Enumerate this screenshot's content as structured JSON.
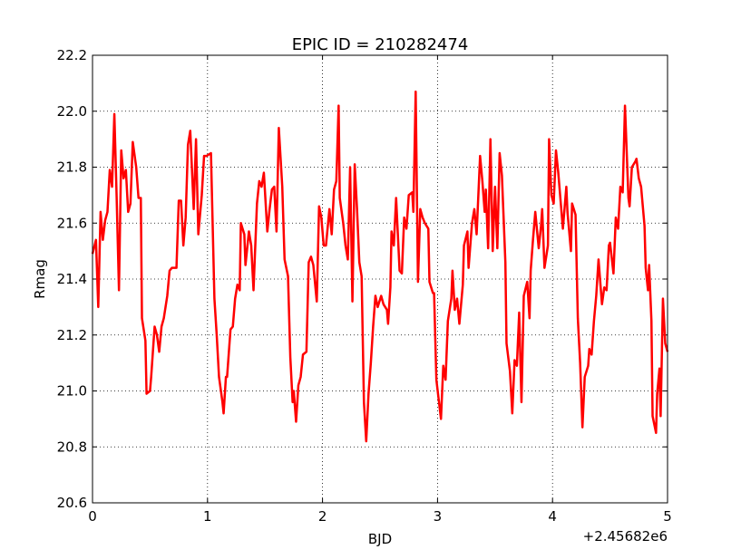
{
  "chart_data": {
    "type": "line",
    "title": "EPIC ID = 210282474",
    "x_label": "BJD",
    "y_label": "Rmag",
    "x_offset_label": "+2.45682e6",
    "xlim": [
      0,
      5
    ],
    "xticks": [
      0,
      1,
      2,
      3,
      4,
      5
    ],
    "ylim": [
      20.6,
      22.2
    ],
    "yticks": [
      20.6,
      20.8,
      {
        "value": 21,
        "label": "21.0"
      },
      21.2,
      21.4,
      21.6,
      21.8,
      {
        "value": 22,
        "label": "22.0"
      },
      22.2
    ],
    "grid": true,
    "series": [
      {
        "color": "#ff0000",
        "x": [
          0,
          0.03,
          0.05,
          0.07,
          0.09,
          0.11,
          0.13,
          0.15,
          0.17,
          0.19,
          0.21,
          0.23,
          0.25,
          0.27,
          0.29,
          0.31,
          0.33,
          0.35,
          0.38,
          0.4,
          0.42,
          0.43,
          0.46,
          0.47,
          0.5,
          0.51,
          0.54,
          0.56,
          0.58,
          0.6,
          0.62,
          0.65,
          0.67,
          0.69,
          0.73,
          0.75,
          0.77,
          0.79,
          0.81,
          0.83,
          0.85,
          0.88,
          0.9,
          0.92,
          0.95,
          0.97,
          0.99,
          1.03,
          1.06,
          1.08,
          1.1,
          1.13,
          1.14,
          1.16,
          1.17,
          1.2,
          1.22,
          1.24,
          1.26,
          1.28,
          1.29,
          1.32,
          1.33,
          1.36,
          1.38,
          1.4,
          1.43,
          1.45,
          1.47,
          1.49,
          1.52,
          1.54,
          1.56,
          1.58,
          1.6,
          1.62,
          1.65,
          1.67,
          1.7,
          1.72,
          1.74,
          1.75,
          1.77,
          1.79,
          1.81,
          1.83,
          1.86,
          1.88,
          1.9,
          1.92,
          1.95,
          1.97,
          1.99,
          2.01,
          2.03,
          2.06,
          2.08,
          2.1,
          2.12,
          2.14,
          2.15,
          2.18,
          2.2,
          2.22,
          2.24,
          2.26,
          2.28,
          2.3,
          2.32,
          2.34,
          2.36,
          2.38,
          2.4,
          2.42,
          2.44,
          2.46,
          2.48,
          2.51,
          2.53,
          2.56,
          2.57,
          2.59,
          2.6,
          2.62,
          2.64,
          2.67,
          2.69,
          2.71,
          2.73,
          2.75,
          2.78,
          2.79,
          2.81,
          2.83,
          2.85,
          2.87,
          2.89,
          2.92,
          2.93,
          2.96,
          2.97,
          2.99,
          3.01,
          3.03,
          3.05,
          3.07,
          3.09,
          3.12,
          3.13,
          3.15,
          3.17,
          3.19,
          3.22,
          3.23,
          3.26,
          3.27,
          3.3,
          3.32,
          3.34,
          3.37,
          3.39,
          3.41,
          3.42,
          3.44,
          3.46,
          3.48,
          3.5,
          3.52,
          3.54,
          3.56,
          3.59,
          3.6,
          3.63,
          3.65,
          3.67,
          3.69,
          3.71,
          3.73,
          3.75,
          3.78,
          3.8,
          3.81,
          3.83,
          3.85,
          3.88,
          3.9,
          3.91,
          3.93,
          3.96,
          3.97,
          3.99,
          4.01,
          4.03,
          4.05,
          4.07,
          4.09,
          4.12,
          4.13,
          4.16,
          4.17,
          4.2,
          4.22,
          4.24,
          4.26,
          4.28,
          4.31,
          4.32,
          4.34,
          4.36,
          4.38,
          4.4,
          4.43,
          4.45,
          4.47,
          4.49,
          4.5,
          4.53,
          4.55,
          4.57,
          4.59,
          4.61,
          4.63,
          4.66,
          4.67,
          4.69,
          4.72,
          4.73,
          4.75,
          4.77,
          4.8,
          4.81,
          4.83,
          4.84,
          4.86,
          4.87,
          4.9,
          4.91,
          4.93,
          4.94,
          4.96,
          4.98,
          5.0
        ],
        "values": [
          21.49,
          21.54,
          21.3,
          21.64,
          21.54,
          21.61,
          21.64,
          21.79,
          21.73,
          21.99,
          21.69,
          21.36,
          21.86,
          21.76,
          21.79,
          21.64,
          21.67,
          21.89,
          21.8,
          21.69,
          21.69,
          21.26,
          21.18,
          20.99,
          21.0,
          21.05,
          21.23,
          21.2,
          21.14,
          21.23,
          21.26,
          21.34,
          21.43,
          21.44,
          21.44,
          21.68,
          21.68,
          21.52,
          21.62,
          21.88,
          21.93,
          21.65,
          21.9,
          21.56,
          21.7,
          21.84,
          21.84,
          21.85,
          21.33,
          21.2,
          21.05,
          20.96,
          20.92,
          21.05,
          21.05,
          21.22,
          21.23,
          21.33,
          21.38,
          21.36,
          21.6,
          21.56,
          21.45,
          21.57,
          21.52,
          21.36,
          21.67,
          21.75,
          21.73,
          21.78,
          21.57,
          21.65,
          21.72,
          21.73,
          21.57,
          21.94,
          21.73,
          21.47,
          21.41,
          21.12,
          20.96,
          21.0,
          20.89,
          21.02,
          21.05,
          21.13,
          21.14,
          21.46,
          21.48,
          21.45,
          21.32,
          21.66,
          21.62,
          21.52,
          21.52,
          21.65,
          21.56,
          21.72,
          21.75,
          22.02,
          21.69,
          21.6,
          21.52,
          21.47,
          21.8,
          21.32,
          21.81,
          21.65,
          21.46,
          21.41,
          20.96,
          20.82,
          20.99,
          21.1,
          21.23,
          21.34,
          21.3,
          21.34,
          21.31,
          21.29,
          21.24,
          21.37,
          21.57,
          21.52,
          21.69,
          21.43,
          21.42,
          21.62,
          21.58,
          21.7,
          21.71,
          21.64,
          22.07,
          21.39,
          21.65,
          21.62,
          21.6,
          21.58,
          21.39,
          21.35,
          21.35,
          21.04,
          20.97,
          20.9,
          21.09,
          21.04,
          21.25,
          21.33,
          21.43,
          21.29,
          21.33,
          21.24,
          21.38,
          21.52,
          21.57,
          21.44,
          21.6,
          21.65,
          21.56,
          21.84,
          21.75,
          21.64,
          21.72,
          21.51,
          21.9,
          21.5,
          21.73,
          21.51,
          21.85,
          21.77,
          21.46,
          21.17,
          21.07,
          20.92,
          21.11,
          21.09,
          21.28,
          20.96,
          21.34,
          21.39,
          21.26,
          21.43,
          21.54,
          21.64,
          21.51,
          21.59,
          21.65,
          21.44,
          21.52,
          21.9,
          21.7,
          21.67,
          21.86,
          21.78,
          21.68,
          21.58,
          21.73,
          21.64,
          21.5,
          21.67,
          21.63,
          21.26,
          21.1,
          20.87,
          21.05,
          21.09,
          21.15,
          21.13,
          21.25,
          21.34,
          21.47,
          21.31,
          21.37,
          21.36,
          21.52,
          21.53,
          21.42,
          21.62,
          21.58,
          21.73,
          21.71,
          22.02,
          21.69,
          21.66,
          21.8,
          21.82,
          21.83,
          21.76,
          21.73,
          21.59,
          21.44,
          21.36,
          21.45,
          21.25,
          20.91,
          20.85,
          20.99,
          21.08,
          20.91,
          21.33,
          21.17,
          21.14
        ]
      }
    ]
  }
}
